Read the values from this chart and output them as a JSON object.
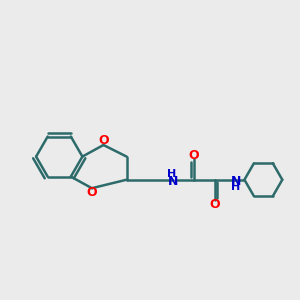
{
  "bg_color": "#ebebeb",
  "bond_color": "#2d6b6b",
  "oxygen_color": "#ff0000",
  "nitrogen_color": "#0000cc",
  "line_width": 1.8,
  "figsize": [
    3.0,
    3.0
  ],
  "dpi": 100,
  "xlim": [
    -0.5,
    10.8
  ],
  "ylim": [
    3.0,
    7.5
  ]
}
